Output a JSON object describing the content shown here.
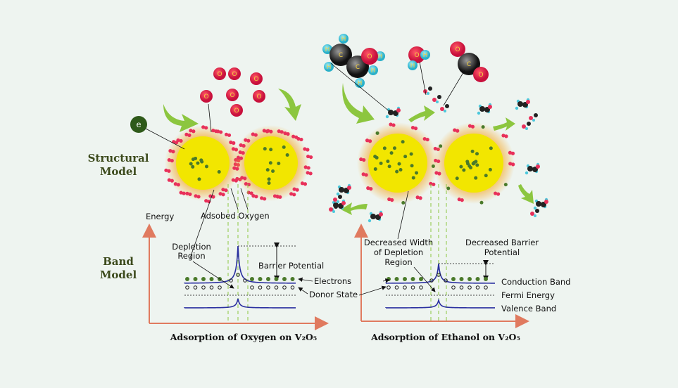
{
  "labels": {
    "structural_model": [
      "Structural",
      "Model"
    ],
    "band_model": [
      "Band",
      "Model"
    ],
    "electron_symbol": "e",
    "energy": "Energy",
    "adsorbed_oxygen": "Adsobed Oxygen",
    "depletion_region": [
      "Depletion",
      "Region"
    ],
    "barrier_potential": "Barrier Potential",
    "electrons": "Electrons",
    "donor_state": "Donor State",
    "decreased_width": [
      "Decreased Width",
      "of Depletion",
      "Region"
    ],
    "decreased_barrier": [
      "Decreased Barrier",
      "Potential"
    ],
    "conduction_band": "Conduction Band",
    "fermi_energy": "Fermi Energy",
    "valence_band": "Valence Band",
    "caption_left": "Adsorption of Oxygen on V₂O₅",
    "caption_right": "Adsorption of Ethanol on V₂O₅"
  },
  "atoms": {
    "oxygen": "O",
    "carbon": "C",
    "hydrogen": "H"
  },
  "colors": {
    "background": "#eef4f0",
    "grain": "#f2e600",
    "oxygen": "#e8305a",
    "carbon": "#222222",
    "hydrogen": "#4cc8dc",
    "arrow": "#8cc63f",
    "band_line": "#2a2fa0",
    "axis": "#e07a5f",
    "electron": "#4a7a2a"
  }
}
